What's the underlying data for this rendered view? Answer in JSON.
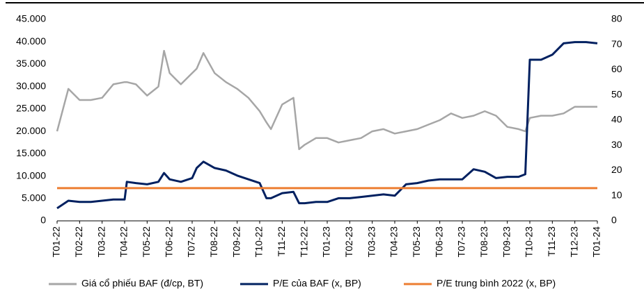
{
  "chart_data": {
    "type": "line",
    "x": [
      0,
      0.5,
      1,
      1.5,
      2,
      2.5,
      3,
      3.1,
      3.5,
      4,
      4.5,
      4.75,
      5,
      5.5,
      6,
      6.2,
      6.5,
      7,
      7.5,
      8,
      8.5,
      9,
      9.3,
      9.5,
      10,
      10.5,
      10.75,
      11,
      11.5,
      12,
      12.5,
      13,
      13.5,
      14,
      14.5,
      15,
      15.5,
      16,
      16.5,
      17,
      17.5,
      18,
      18.5,
      19,
      19.5,
      20,
      20.5,
      20.8,
      21,
      21.5,
      22,
      22.5,
      23,
      23.5,
      24
    ],
    "xlim": [
      0,
      24
    ],
    "xticks": [
      {
        "value": 0,
        "label": "T01-22"
      },
      {
        "value": 1,
        "label": "T02-22"
      },
      {
        "value": 2,
        "label": "T03-22"
      },
      {
        "value": 3,
        "label": "T04-22"
      },
      {
        "value": 4,
        "label": "T05-22"
      },
      {
        "value": 5,
        "label": "T06-22"
      },
      {
        "value": 6,
        "label": "T07-22"
      },
      {
        "value": 7,
        "label": "T08-22"
      },
      {
        "value": 8,
        "label": "T09-22"
      },
      {
        "value": 9,
        "label": "T10-22"
      },
      {
        "value": 10,
        "label": "T11-22"
      },
      {
        "value": 11,
        "label": "T12-22"
      },
      {
        "value": 12,
        "label": "T01-23"
      },
      {
        "value": 13,
        "label": "T02-23"
      },
      {
        "value": 14,
        "label": "T03-23"
      },
      {
        "value": 15,
        "label": "T04-23"
      },
      {
        "value": 16,
        "label": "T05-23"
      },
      {
        "value": 17,
        "label": "T06-23"
      },
      {
        "value": 18,
        "label": "T07-23"
      },
      {
        "value": 19,
        "label": "T08-23"
      },
      {
        "value": 20,
        "label": "T09-23"
      },
      {
        "value": 21,
        "label": "T10-23"
      },
      {
        "value": 22,
        "label": "T11-23"
      },
      {
        "value": 23,
        "label": "T12-23"
      },
      {
        "value": 24,
        "label": "T01-24"
      }
    ],
    "ylim": [
      0,
      45000
    ],
    "yticks": [
      0,
      {
        "value": 5000,
        "label": "5.000"
      },
      {
        "value": 10000,
        "label": "10.000"
      },
      {
        "value": 15000,
        "label": "15.000"
      },
      {
        "value": 20000,
        "label": "20.000"
      },
      {
        "value": 25000,
        "label": "25.000"
      },
      {
        "value": 30000,
        "label": "30.000"
      },
      {
        "value": 35000,
        "label": "35.000"
      },
      {
        "value": 40000,
        "label": "40.000"
      },
      {
        "value": 45000,
        "label": "45.000"
      }
    ],
    "y2lim": [
      0,
      80
    ],
    "y2ticks": [
      0,
      10,
      20,
      30,
      40,
      50,
      60,
      70,
      80
    ],
    "series": [
      {
        "name": "Giá cổ phiếu BAF (đ/cp, BT)",
        "color": "#a6a6a6",
        "values": [
          20000,
          29500,
          27000,
          27000,
          27500,
          30500,
          31000,
          31000,
          30500,
          28000,
          30000,
          38000,
          33000,
          30500,
          33000,
          34000,
          37500,
          33000,
          31000,
          29500,
          27500,
          24500,
          22000,
          20500,
          26000,
          27500,
          16000,
          17000,
          18500,
          18500,
          17500,
          18000,
          18500,
          20000,
          20500,
          19500,
          20000,
          20500,
          21500,
          22500,
          24000,
          23000,
          23500,
          24500,
          23500,
          21000,
          20500,
          20000,
          23000,
          23500,
          23500,
          24000,
          25500,
          25500,
          25500
        ]
      },
      {
        "name": "P/E của BAF (x, BP)",
        "color": "#002060",
        "axis": "y2",
        "values": [
          5,
          8,
          7.5,
          7.5,
          8,
          8.5,
          8.5,
          15.5,
          15,
          14.5,
          15.5,
          19,
          16.5,
          15.5,
          17,
          21,
          23.5,
          21,
          20,
          18,
          16.5,
          15,
          9,
          9,
          11,
          11.5,
          7,
          7,
          7.5,
          7.5,
          9,
          9,
          9.5,
          10,
          10.5,
          10,
          14.5,
          15,
          16,
          16.5,
          16.5,
          16.5,
          20.5,
          19.5,
          17,
          17.5,
          17.5,
          18.5,
          64,
          64,
          66,
          70.5,
          71,
          71,
          70.5
        ]
      },
      {
        "name": "P/E trung bình 2022 (x, BP)",
        "color": "#ed7d31",
        "axis": "y2",
        "values": [
          13,
          13,
          13,
          13,
          13,
          13,
          13,
          13,
          13,
          13,
          13,
          13,
          13,
          13,
          13,
          13,
          13,
          13,
          13,
          13,
          13,
          13,
          13,
          13,
          13,
          13,
          13,
          13,
          13,
          13,
          13,
          13,
          13,
          13,
          13,
          13,
          13,
          13,
          13,
          13,
          13,
          13,
          13,
          13,
          13,
          13,
          13,
          13,
          13,
          13,
          13,
          13,
          13,
          13,
          13
        ]
      }
    ]
  }
}
